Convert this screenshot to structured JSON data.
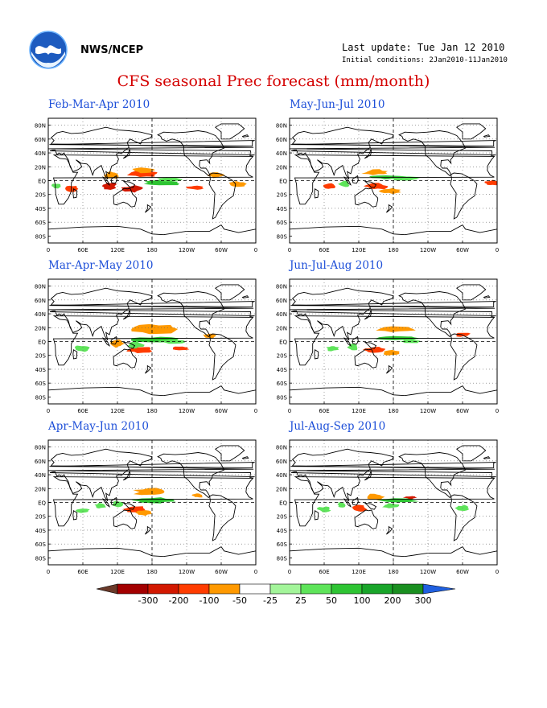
{
  "header": {
    "agency": "NWS/NCEP",
    "last_update": "Last update: Tue Jan 12 2010",
    "initial_conditions": "Initial conditions: 2Jan2010-11Jan2010",
    "title": "CFS seasonal Prec forecast (mm/month)"
  },
  "panels": [
    {
      "title": "Feb-Mar-Apr 2010"
    },
    {
      "title": "May-Jun-Jul 2010"
    },
    {
      "title": "Mar-Apr-May 2010"
    },
    {
      "title": "Jun-Jul-Aug 2010"
    },
    {
      "title": "Apr-May-Jun 2010"
    },
    {
      "title": "Jul-Aug-Sep 2010"
    }
  ],
  "axes": {
    "lat_labels": [
      "80N",
      "60N",
      "40N",
      "20N",
      "EQ",
      "20S",
      "40S",
      "60S",
      "80S"
    ],
    "lon_labels": [
      "0",
      "60E",
      "120E",
      "180",
      "120W",
      "60W",
      "0"
    ]
  },
  "colorbar": {
    "labels": [
      "-300",
      "-200",
      "-100",
      "-50",
      "-25",
      "25",
      "50",
      "100",
      "200",
      "300"
    ],
    "colors": [
      "#6b3a2a",
      "#a30000",
      "#d21800",
      "#ff3c00",
      "#ff9900",
      "#ffffff",
      "#a3f59a",
      "#5ee45a",
      "#2ec433",
      "#19a52a",
      "#1a8f20",
      "#2060e0"
    ]
  }
}
